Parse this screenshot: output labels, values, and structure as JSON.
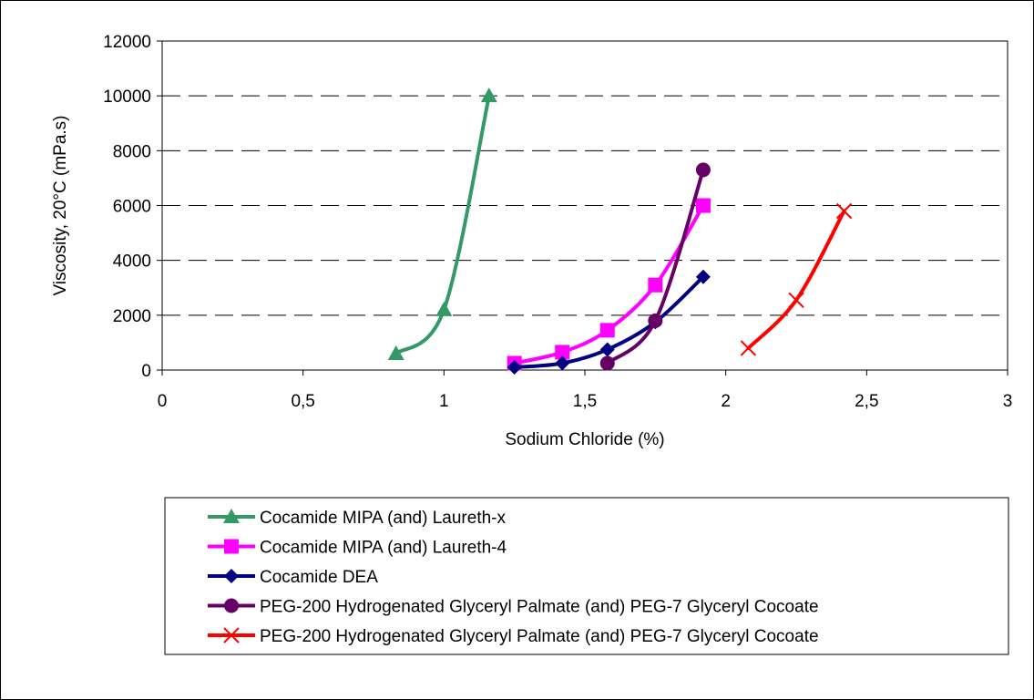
{
  "chart_data": {
    "type": "line",
    "title": "",
    "xlabel": "Sodium Chloride (%)",
    "ylabel": "Viscosity, 20°C (mPa.s)",
    "xlim": [
      0,
      3
    ],
    "ylim": [
      0,
      12000
    ],
    "x_ticks": [
      0,
      0.5,
      1,
      1.5,
      2,
      2.5,
      3
    ],
    "x_tick_labels": [
      "0",
      "0,5",
      "1",
      "1,5",
      "2",
      "2,5",
      "3"
    ],
    "y_ticks": [
      0,
      2000,
      4000,
      6000,
      8000,
      10000,
      12000
    ],
    "y_tick_labels": [
      "0",
      "2000",
      "4000",
      "6000",
      "8000",
      "10000",
      "12000"
    ],
    "grid": "horizontal dashed",
    "legend_position": "bottom",
    "series": [
      {
        "name": "Cocamide MIPA (and) Laureth-x",
        "color": "#339966",
        "marker": "triangle",
        "x": [
          0.83,
          1.0,
          1.16
        ],
        "y": [
          600,
          2200,
          10000
        ]
      },
      {
        "name": "Cocamide MIPA (and) Laureth-4",
        "color": "#ff00ff",
        "marker": "square",
        "x": [
          1.25,
          1.42,
          1.58,
          1.75,
          1.92
        ],
        "y": [
          250,
          650,
          1450,
          3100,
          6000
        ]
      },
      {
        "name": "Cocamide DEA",
        "color": "#000080",
        "marker": "diamond",
        "x": [
          1.25,
          1.42,
          1.58,
          1.75,
          1.92
        ],
        "y": [
          100,
          250,
          750,
          1750,
          3400
        ]
      },
      {
        "name": "PEG-200 Hydrogenated Glyceryl Palmate (and) PEG-7 Glyceryl Cocoate",
        "color": "#660066",
        "marker": "circle",
        "x": [
          1.58,
          1.75,
          1.92
        ],
        "y": [
          250,
          1800,
          7300
        ]
      },
      {
        "name": "PEG-200 Hydrogenated Glyceryl Palmate (and) PEG-7 Glyceryl Cocoate",
        "color": "#ff0000",
        "marker": "x",
        "x": [
          2.08,
          2.25,
          2.42
        ],
        "y": [
          800,
          2550,
          5800
        ]
      }
    ]
  }
}
